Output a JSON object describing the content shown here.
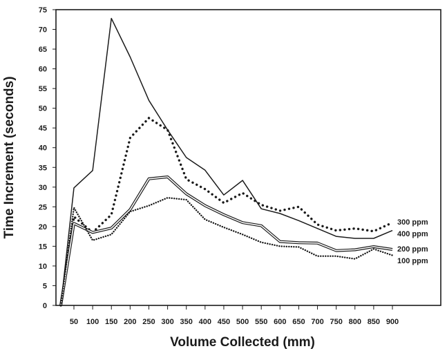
{
  "chart_data": {
    "type": "line",
    "xlabel": "Volume Collected (mm)",
    "ylabel": "Time Increment (seconds)",
    "xlim": [
      0,
      1000
    ],
    "ylim": [
      0,
      75
    ],
    "grid": false,
    "x_ticks": [
      50,
      100,
      150,
      200,
      250,
      300,
      350,
      400,
      450,
      500,
      550,
      600,
      650,
      700,
      750,
      800,
      850,
      900
    ],
    "y_ticks": [
      0,
      5,
      10,
      15,
      20,
      25,
      30,
      35,
      40,
      45,
      50,
      55,
      60,
      65,
      70,
      75
    ],
    "series": [
      {
        "name": "300 ppm",
        "style": "dotted-bold",
        "x": [
          15,
          50,
          100,
          150,
          200,
          250,
          300,
          350,
          400,
          450,
          500,
          550,
          600,
          650,
          700,
          750,
          800,
          850,
          900
        ],
        "y": [
          0,
          22.5,
          18.5,
          23,
          42.5,
          47.5,
          44.5,
          32,
          29.5,
          26,
          28.5,
          25.5,
          24,
          25,
          20.5,
          19,
          19.5,
          18.8,
          21
        ]
      },
      {
        "name": "400 ppm",
        "style": "solid",
        "x": [
          15,
          50,
          100,
          150,
          200,
          250,
          300,
          350,
          400,
          450,
          500,
          550,
          600,
          650,
          700,
          750,
          800,
          850,
          900
        ],
        "y": [
          0,
          29.8,
          34.2,
          72.8,
          63,
          52,
          44.5,
          37.5,
          34.3,
          28,
          31.7,
          24.5,
          23.3,
          21.5,
          19.5,
          17.5,
          17,
          17,
          19
        ]
      },
      {
        "name": "200 ppm",
        "style": "double",
        "x": [
          15,
          50,
          100,
          150,
          200,
          250,
          300,
          350,
          400,
          450,
          500,
          550,
          600,
          650,
          700,
          750,
          800,
          850,
          900
        ],
        "y": [
          0,
          20.8,
          18.5,
          19.6,
          24.3,
          32.1,
          32.6,
          28.3,
          25.3,
          23,
          21,
          20.2,
          16.2,
          15.9,
          15.8,
          13.9,
          14.1,
          14.9,
          14.2
        ]
      },
      {
        "name": "100 ppm",
        "style": "dotted-fine",
        "x": [
          15,
          50,
          100,
          150,
          200,
          250,
          300,
          350,
          400,
          450,
          500,
          550,
          600,
          650,
          700,
          750,
          800,
          850,
          900
        ],
        "y": [
          0,
          24.8,
          16.5,
          18,
          23.8,
          25.3,
          27.3,
          26.8,
          21.8,
          19.8,
          18,
          16,
          15,
          14.8,
          12.5,
          12.5,
          11.8,
          14.3,
          12.7
        ]
      }
    ]
  }
}
